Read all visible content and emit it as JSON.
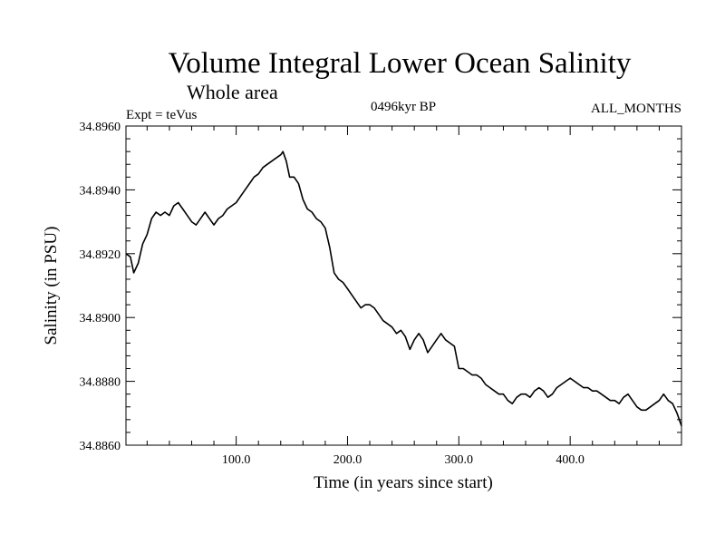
{
  "header": {
    "title": "Volume Integral Lower Ocean Salinity",
    "subtitle": "Whole area",
    "experiment": "Expt = teVus",
    "period": "0496kyr BP",
    "months": "ALL_MONTHS"
  },
  "chart_data": {
    "type": "line",
    "title": "Volume Integral Lower Ocean Salinity",
    "subtitle": "Whole area",
    "xlabel": "Time (in years since start)",
    "ylabel": "Salinity (in PSU)",
    "xlim": [
      1,
      500
    ],
    "ylim": [
      34.886,
      34.896
    ],
    "x_ticks": [
      100,
      200,
      300,
      400
    ],
    "x_tick_labels": [
      "100.0",
      "200.0",
      "300.0",
      "400.0"
    ],
    "y_ticks": [
      34.886,
      34.888,
      34.89,
      34.892,
      34.894,
      34.896
    ],
    "y_tick_labels": [
      "34.8860",
      "34.8880",
      "34.8900",
      "34.8920",
      "34.8940",
      "34.8960"
    ],
    "grid": false,
    "series": [
      {
        "color": "#000000",
        "x": [
          1,
          5,
          8,
          12,
          16,
          20,
          24,
          28,
          32,
          36,
          40,
          44,
          48,
          52,
          56,
          60,
          64,
          68,
          72,
          76,
          80,
          84,
          88,
          92,
          96,
          100,
          104,
          108,
          112,
          116,
          120,
          124,
          128,
          132,
          136,
          140,
          142,
          145,
          148,
          152,
          156,
          160,
          164,
          168,
          172,
          176,
          180,
          184,
          188,
          192,
          196,
          200,
          204,
          208,
          212,
          216,
          220,
          224,
          228,
          232,
          236,
          240,
          244,
          248,
          252,
          256,
          260,
          264,
          268,
          272,
          276,
          280,
          284,
          288,
          292,
          296,
          300,
          304,
          308,
          312,
          316,
          320,
          324,
          328,
          332,
          336,
          340,
          344,
          348,
          352,
          356,
          360,
          364,
          368,
          372,
          376,
          380,
          384,
          388,
          392,
          396,
          400,
          404,
          408,
          412,
          416,
          420,
          424,
          428,
          432,
          436,
          440,
          444,
          448,
          452,
          456,
          460,
          464,
          468,
          472,
          476,
          480,
          484,
          488,
          492,
          496,
          500
        ],
        "y": [
          34.892,
          34.8919,
          34.8914,
          34.8917,
          34.8923,
          34.8926,
          34.8931,
          34.8933,
          34.8932,
          34.8933,
          34.8932,
          34.8935,
          34.8936,
          34.8934,
          34.8932,
          34.893,
          34.8929,
          34.8931,
          34.8933,
          34.8931,
          34.8929,
          34.8931,
          34.8932,
          34.8934,
          34.8935,
          34.8936,
          34.8938,
          34.894,
          34.8942,
          34.8944,
          34.8945,
          34.8947,
          34.8948,
          34.8949,
          34.895,
          34.8951,
          34.8952,
          34.8949,
          34.8944,
          34.8944,
          34.8942,
          34.8937,
          34.8934,
          34.8933,
          34.8931,
          34.893,
          34.8928,
          34.8922,
          34.8914,
          34.8912,
          34.8911,
          34.8909,
          34.8907,
          34.8905,
          34.8903,
          34.8904,
          34.8904,
          34.8903,
          34.8901,
          34.8899,
          34.8898,
          34.8897,
          34.8895,
          34.8896,
          34.8894,
          34.889,
          34.8893,
          34.8895,
          34.8893,
          34.8889,
          34.8891,
          34.8893,
          34.8895,
          34.8893,
          34.8892,
          34.8891,
          34.8884,
          34.8884,
          34.8883,
          34.8882,
          34.8882,
          34.8881,
          34.8879,
          34.8878,
          34.8877,
          34.8876,
          34.8876,
          34.8874,
          34.8873,
          34.8875,
          34.8876,
          34.8876,
          34.8875,
          34.8877,
          34.8878,
          34.8877,
          34.8875,
          34.8876,
          34.8878,
          34.8879,
          34.888,
          34.8881,
          34.888,
          34.8879,
          34.8878,
          34.8878,
          34.8877,
          34.8877,
          34.8876,
          34.8875,
          34.8874,
          34.8874,
          34.8873,
          34.8875,
          34.8876,
          34.8874,
          34.8872,
          34.8871,
          34.8871,
          34.8872,
          34.8873,
          34.8874,
          34.8876,
          34.8874,
          34.8873,
          34.887,
          34.8866
        ]
      }
    ]
  }
}
